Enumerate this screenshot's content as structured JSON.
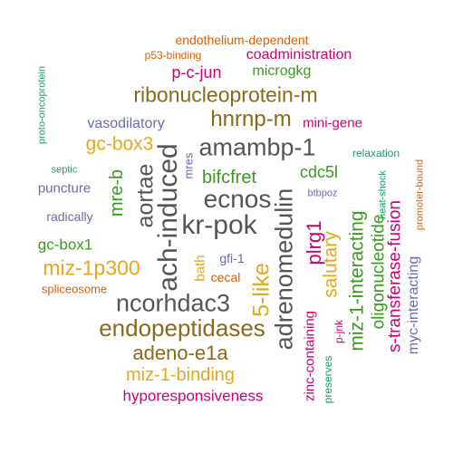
{
  "colors": {
    "orange": "#d95f02",
    "magenta": "#cc0077",
    "green": "#3a9a1f",
    "gold": "#e3a81c",
    "brown": "#8a6a1a",
    "gray": "#555555",
    "purple": "#6b6bb0",
    "teal": "#1a9a70"
  },
  "words": [
    {
      "text": "endothelium-dependent",
      "color": "orange"
    },
    {
      "text": "p53-binding",
      "color": "orange"
    },
    {
      "text": "coadministration",
      "color": "magenta"
    },
    {
      "text": "p-c-jun",
      "color": "magenta"
    },
    {
      "text": "microgkg",
      "color": "green"
    },
    {
      "text": "proto-oncoprotein",
      "color": "teal"
    },
    {
      "text": "ribonucleoprotein-m",
      "color": "brown"
    },
    {
      "text": "hnrnp-m",
      "color": "brown"
    },
    {
      "text": "vasodilatory",
      "color": "purple"
    },
    {
      "text": "mini-gene",
      "color": "magenta"
    },
    {
      "text": "gc-box3",
      "color": "gold"
    },
    {
      "text": "amambp-1",
      "color": "gray"
    },
    {
      "text": "relaxation",
      "color": "teal"
    },
    {
      "text": "promoter-bound",
      "color": "orange"
    },
    {
      "text": "heat-shock",
      "color": "teal"
    },
    {
      "text": "bifcfret",
      "color": "green"
    },
    {
      "text": "cdc5l",
      "color": "green"
    },
    {
      "text": "septic",
      "color": "teal"
    },
    {
      "text": "mre-b",
      "color": "green"
    },
    {
      "text": "aortae",
      "color": "gray"
    },
    {
      "text": "ach-induced",
      "color": "gray"
    },
    {
      "text": "mres",
      "color": "purple"
    },
    {
      "text": "ecnos",
      "color": "gray"
    },
    {
      "text": "puncture",
      "color": "purple"
    },
    {
      "text": "btbpoz",
      "color": "purple"
    },
    {
      "text": "kr-pok",
      "color": "gray"
    },
    {
      "text": "adrenomedulin",
      "color": "gray"
    },
    {
      "text": "radically",
      "color": "purple"
    },
    {
      "text": "plrg1",
      "color": "magenta"
    },
    {
      "text": "gc-box1",
      "color": "green"
    },
    {
      "text": "gfi-1",
      "color": "purple"
    },
    {
      "text": "salutary",
      "color": "gold"
    },
    {
      "text": "miz-1-interacting",
      "color": "green"
    },
    {
      "text": "oligonucleotide",
      "color": "green"
    },
    {
      "text": "s-transferase-fusion",
      "color": "magenta"
    },
    {
      "text": "myc-interacting",
      "color": "purple"
    },
    {
      "text": "miz-1p300",
      "color": "gold"
    },
    {
      "text": "bath",
      "color": "gold"
    },
    {
      "text": "cecal",
      "color": "orange"
    },
    {
      "text": "spliceosome",
      "color": "orange"
    },
    {
      "text": "p-jnk",
      "color": "magenta"
    },
    {
      "text": "ncorhdac3",
      "color": "gray"
    },
    {
      "text": "5-like",
      "color": "gold"
    },
    {
      "text": "endopeptidases",
      "color": "brown"
    },
    {
      "text": "zinc-containing",
      "color": "magenta"
    },
    {
      "text": "adeno-e1a",
      "color": "brown"
    },
    {
      "text": "preserves",
      "color": "teal"
    },
    {
      "text": "miz-1-binding",
      "color": "gold"
    },
    {
      "text": "hyporesponsiveness",
      "color": "magenta"
    }
  ]
}
